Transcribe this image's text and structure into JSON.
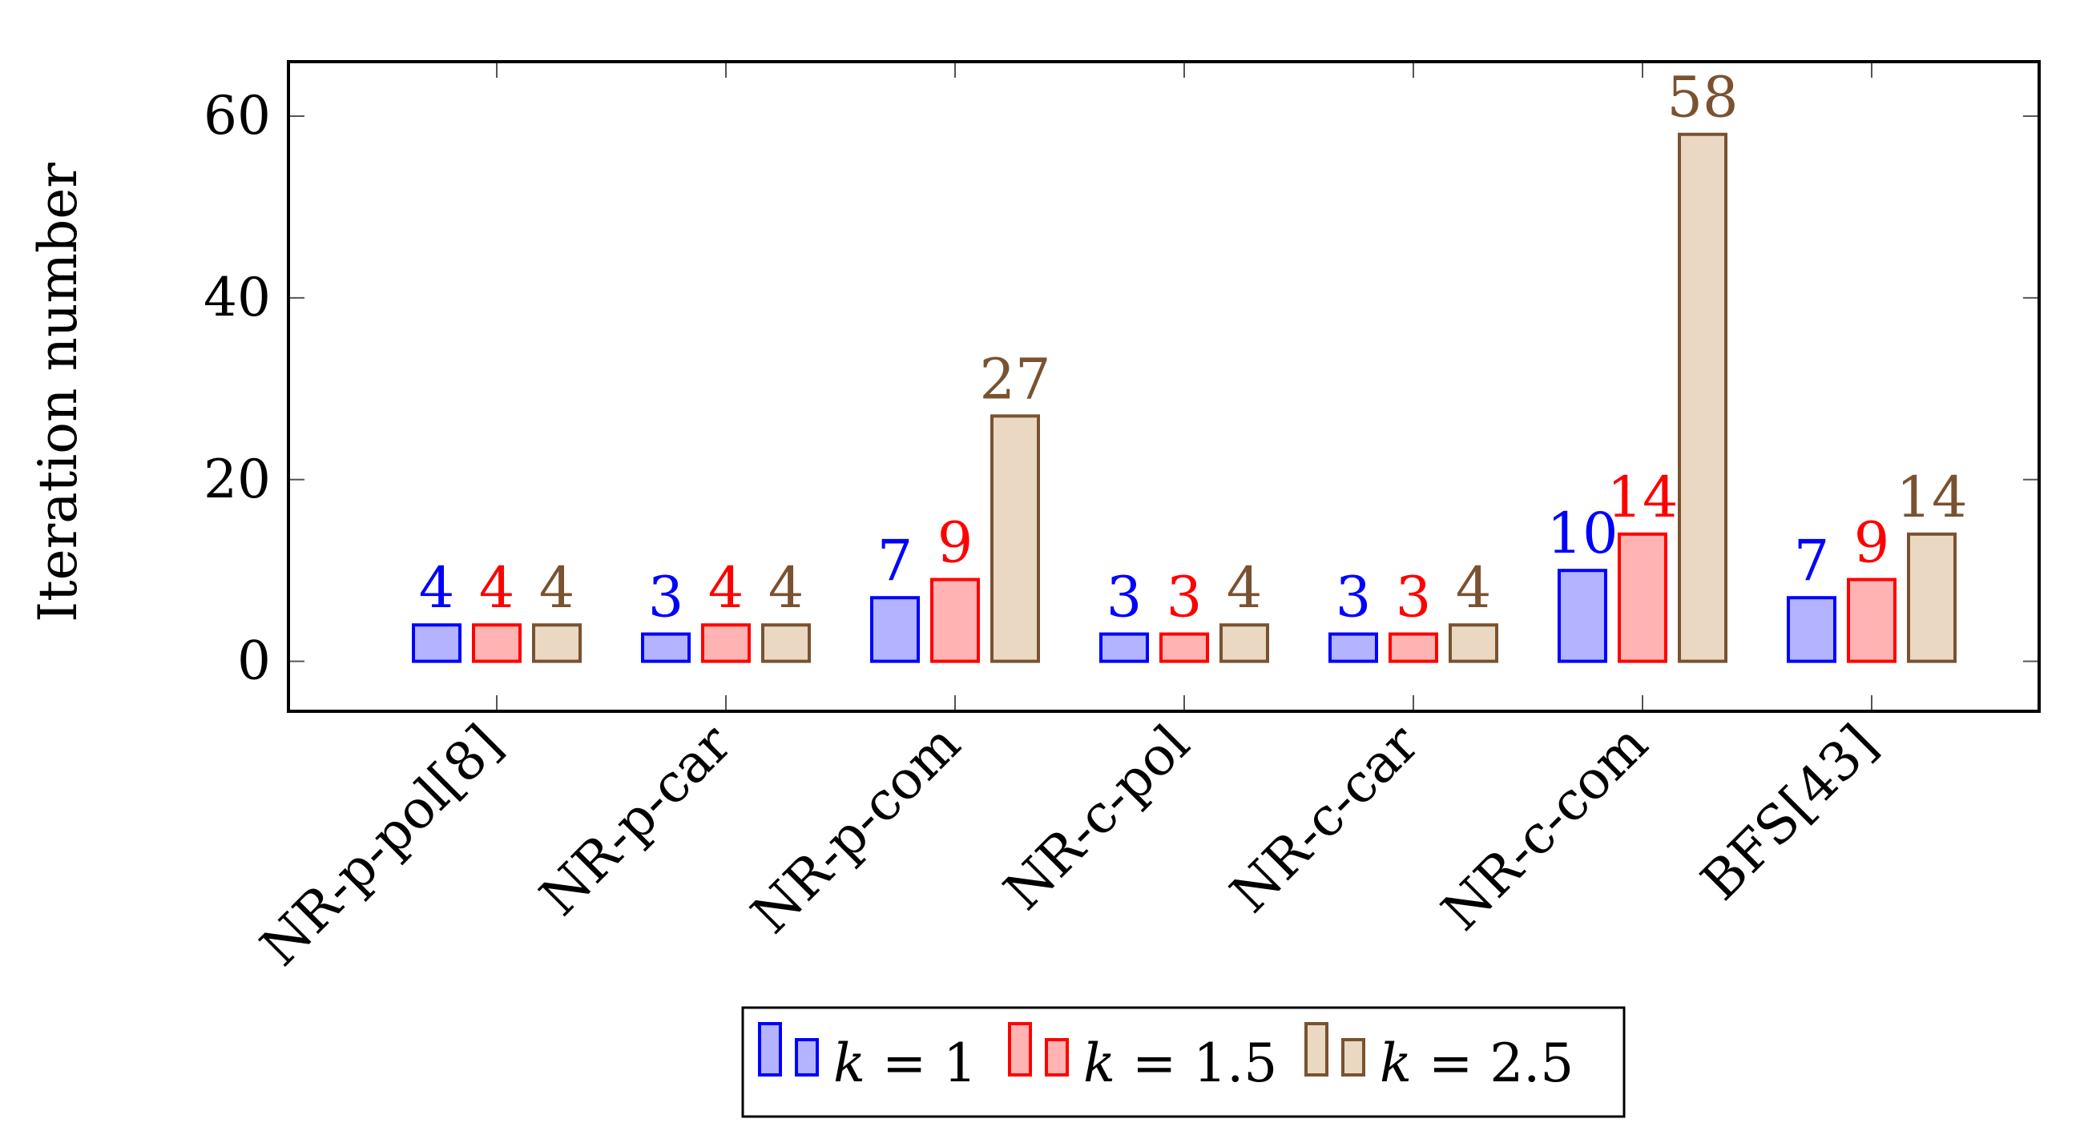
{
  "chart_data": {
    "type": "bar",
    "title": "",
    "xlabel": "",
    "ylabel": "Iteration number",
    "ylim": [
      -5.5,
      66
    ],
    "yticks": [
      0,
      20,
      40,
      60
    ],
    "grid": false,
    "legend_placement": "bottom-center",
    "categories": [
      "NR-p-pol[8]",
      "NR-p-car",
      "NR-p-com",
      "NR-c-pol",
      "NR-c-car",
      "NR-c-com",
      "BFS[43]"
    ],
    "series": [
      {
        "name": "k = 1",
        "legend_var": "k",
        "legend_rest": " = 1",
        "values": [
          4,
          3,
          7,
          3,
          3,
          10,
          7
        ],
        "stroke": "#0000ff",
        "fill": "#b3b3ff"
      },
      {
        "name": "k = 1.5",
        "legend_var": "k",
        "legend_rest": " = 1.5",
        "values": [
          4,
          4,
          9,
          3,
          3,
          14,
          9
        ],
        "stroke": "#ff0000",
        "fill": "#ffb3b3"
      },
      {
        "name": "k = 2.5",
        "legend_var": "k",
        "legend_rest": " = 2.5",
        "values": [
          4,
          4,
          27,
          4,
          4,
          58,
          14
        ],
        "stroke": "#7a5230",
        "fill": "#ead8c3"
      }
    ]
  }
}
